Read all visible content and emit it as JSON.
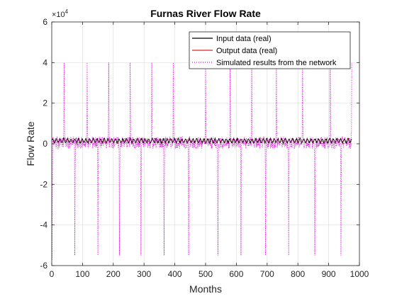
{
  "chart_data": {
    "type": "line",
    "title": "Furnas River Flow Rate",
    "xlabel": "Months",
    "ylabel": "Flow Rate",
    "exponent_label": "×10",
    "exponent_power": "4",
    "xlim": [
      0,
      1000
    ],
    "ylim": [
      -60000,
      60000
    ],
    "xticks": [
      0,
      100,
      200,
      300,
      400,
      500,
      600,
      700,
      800,
      900,
      1000
    ],
    "xtick_labels": [
      "0",
      "100",
      "200",
      "300",
      "400",
      "500",
      "600",
      "700",
      "800",
      "900",
      "1000"
    ],
    "yticks": [
      -60000,
      -40000,
      -20000,
      0,
      20000,
      40000,
      60000
    ],
    "ytick_labels": [
      "-6",
      "-4",
      "-2",
      "0",
      "2",
      "4",
      "6"
    ],
    "grid": true,
    "legend_position": "top-right",
    "n_points": 975,
    "series": [
      {
        "name": "Input data (real)",
        "color": "#000000",
        "style": "solid",
        "description_period_months": 12,
        "baseline": 1500,
        "peak": 2500,
        "trough": 600
      },
      {
        "name": "Output data (real)",
        "color": "#d62728",
        "style": "solid",
        "description_period_months": 12,
        "baseline": 1500,
        "peak": 2500,
        "trough": 600
      },
      {
        "name": "Simulated results from the network",
        "color": "#e000e0",
        "style": "dotted",
        "spike_positions": [
          40,
          115,
          185,
          255,
          325,
          395,
          500,
          580,
          650,
          730,
          815,
          905,
          975
        ],
        "spike_peaks": [
          40000,
          40000,
          40000,
          40000,
          40000,
          40000,
          40000,
          40000,
          40000,
          40000,
          40000,
          40000,
          40000
        ],
        "dip_positions": [
          75,
          150,
          220,
          290,
          365,
          445,
          540,
          615,
          695,
          770,
          855,
          940
        ],
        "dip_troughs": [
          -55000,
          -55000,
          -55000,
          -55000,
          -55000,
          -55000,
          -55000,
          -55000,
          -55000,
          -55000,
          -55000,
          -55000
        ],
        "initial_dip": -57000,
        "noise_amplitude": 6000
      }
    ]
  }
}
